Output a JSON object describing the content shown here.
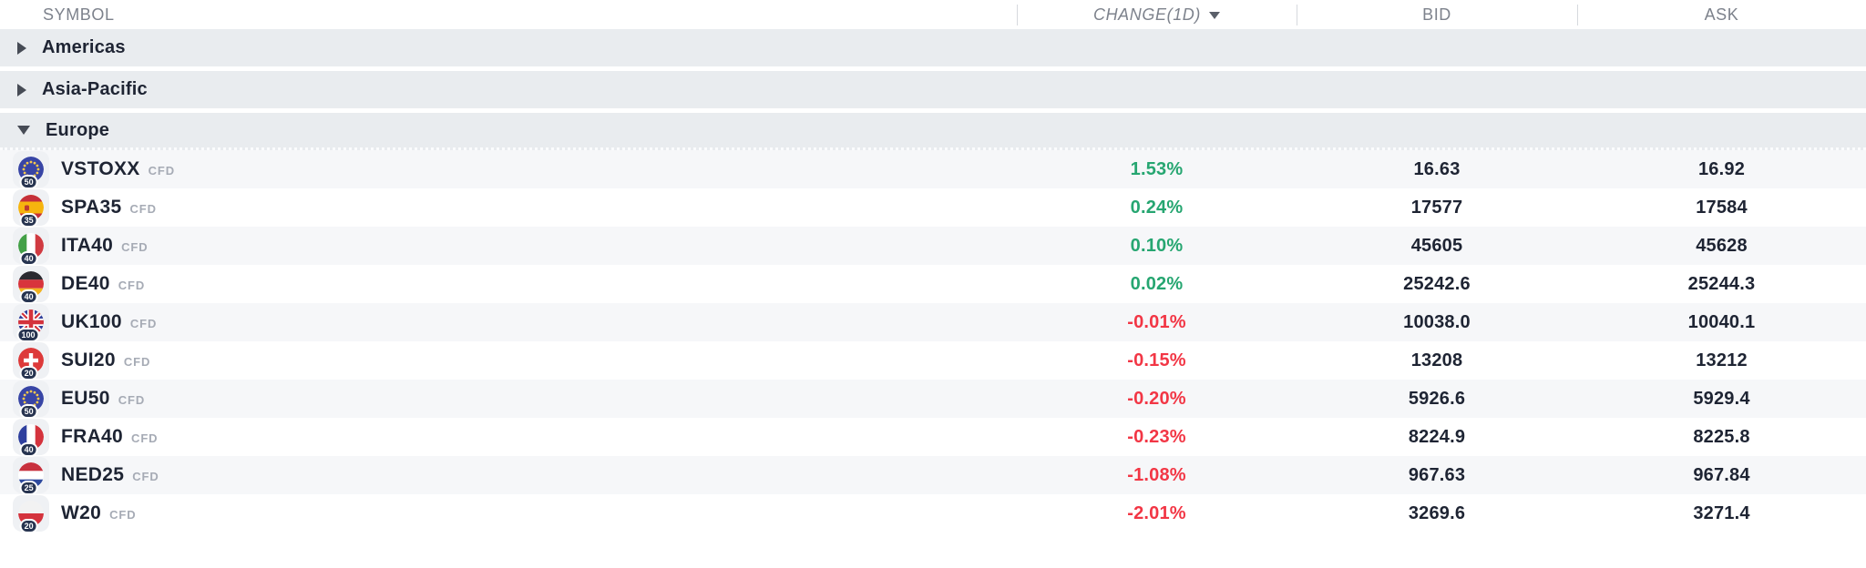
{
  "colors": {
    "positive": "#26a671",
    "negative": "#f23645",
    "text_primary": "#1e2433",
    "text_muted": "#7d828c",
    "group_bg": "#e9ecef",
    "stripe_bg": "#f6f7f9"
  },
  "table": {
    "columns": [
      {
        "id": "symbol",
        "label": "SYMBOL"
      },
      {
        "id": "change",
        "label": "CHANGE(1D)",
        "sorted": "desc"
      },
      {
        "id": "bid",
        "label": "BID"
      },
      {
        "id": "ask",
        "label": "ASK"
      }
    ],
    "groups": [
      {
        "label": "Americas",
        "expanded": false,
        "rows": []
      },
      {
        "label": "Asia-Pacific",
        "expanded": false,
        "rows": []
      },
      {
        "label": "Europe",
        "expanded": true,
        "rows": [
          {
            "symbol": "VSTOXX",
            "type": "CFD",
            "flag": "eu",
            "badge": "50",
            "change": "1.53%",
            "direction": "up",
            "bid": "16.63",
            "ask": "16.92"
          },
          {
            "symbol": "SPA35",
            "type": "CFD",
            "flag": "es",
            "badge": "35",
            "change": "0.24%",
            "direction": "up",
            "bid": "17577",
            "ask": "17584"
          },
          {
            "symbol": "ITA40",
            "type": "CFD",
            "flag": "it",
            "badge": "40",
            "change": "0.10%",
            "direction": "up",
            "bid": "45605",
            "ask": "45628"
          },
          {
            "symbol": "DE40",
            "type": "CFD",
            "flag": "de",
            "badge": "40",
            "change": "0.02%",
            "direction": "up",
            "bid": "25242.6",
            "ask": "25244.3"
          },
          {
            "symbol": "UK100",
            "type": "CFD",
            "flag": "gb",
            "badge": "100",
            "change": "-0.01%",
            "direction": "down",
            "bid": "10038.0",
            "ask": "10040.1"
          },
          {
            "symbol": "SUI20",
            "type": "CFD",
            "flag": "ch",
            "badge": "20",
            "change": "-0.15%",
            "direction": "down",
            "bid": "13208",
            "ask": "13212"
          },
          {
            "symbol": "EU50",
            "type": "CFD",
            "flag": "eu",
            "badge": "50",
            "change": "-0.20%",
            "direction": "down",
            "bid": "5926.6",
            "ask": "5929.4"
          },
          {
            "symbol": "FRA40",
            "type": "CFD",
            "flag": "fr",
            "badge": "40",
            "change": "-0.23%",
            "direction": "down",
            "bid": "8224.9",
            "ask": "8225.8"
          },
          {
            "symbol": "NED25",
            "type": "CFD",
            "flag": "nl",
            "badge": "25",
            "change": "-1.08%",
            "direction": "down",
            "bid": "967.63",
            "ask": "967.84"
          },
          {
            "symbol": "W20",
            "type": "CFD",
            "flag": "pl",
            "badge": "20",
            "change": "-2.01%",
            "direction": "down",
            "bid": "3269.6",
            "ask": "3271.4"
          }
        ]
      }
    ]
  }
}
